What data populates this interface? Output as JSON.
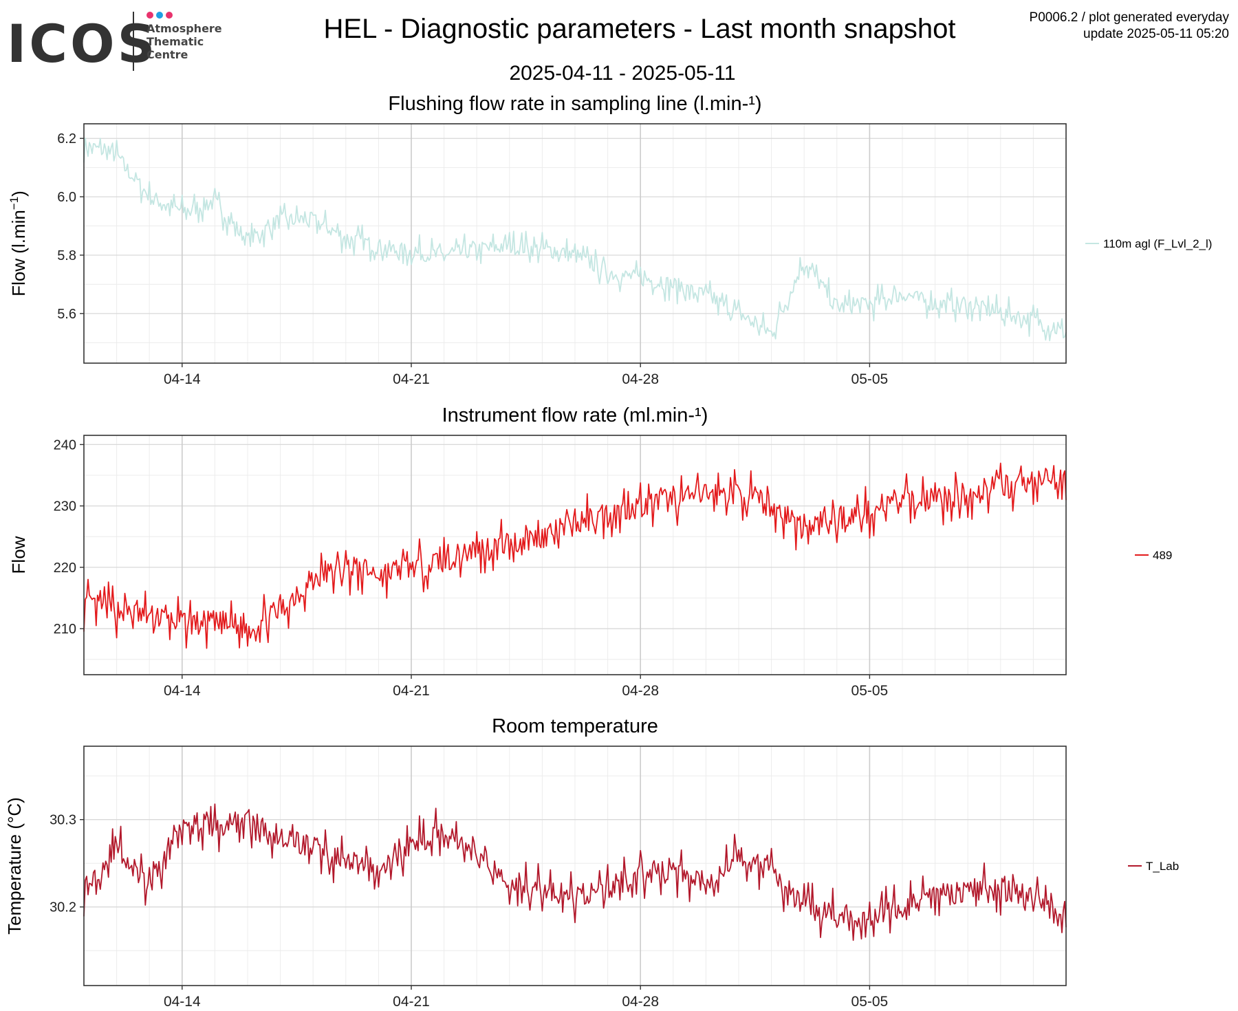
{
  "header": {
    "logo_text": "ICOS",
    "logo_sub": "Atmosphere\nThematic\nCentre",
    "title": "HEL - Diagnostic parameters - Last month snapshot",
    "date_range": "2025-04-11 - 2025-05-11",
    "meta_line1": "P0006.2 / plot generated everyday",
    "meta_line2": "update  2025-05-11 05:20",
    "logo_dot_colors": [
      "#e8336d",
      "#1fa0e3",
      "#e8336d"
    ]
  },
  "chart_data": [
    {
      "type": "line",
      "title": "Flushing flow rate in sampling line (l.min-¹)",
      "ylabel": "Flow (l.min",
      "ylabel_sup": "−1",
      "ylabel_end": ")",
      "xlim": [
        "2025-04-11",
        "2025-05-11"
      ],
      "ylim": [
        5.43,
        6.25
      ],
      "yticks": [
        5.6,
        5.8,
        6.0,
        6.2
      ],
      "ytick_labels": [
        "5.6",
        "5.8",
        "6.0",
        "6.2"
      ],
      "xticks": [
        "2025-04-14",
        "2025-04-21",
        "2025-04-28",
        "2025-05-05"
      ],
      "xtick_labels": [
        "04-14",
        "04-21",
        "04-28",
        "05-05"
      ],
      "grid": true,
      "legend_position": "right",
      "series": [
        {
          "name": "110m agl (F_Lvl_2_l)",
          "color": "#c4e6e2",
          "x": [
            "2025-04-11",
            "2025-04-12",
            "2025-04-13",
            "2025-04-14",
            "2025-04-15",
            "2025-04-16",
            "2025-04-17",
            "2025-04-18",
            "2025-04-19",
            "2025-04-20",
            "2025-04-21",
            "2025-04-22",
            "2025-04-23",
            "2025-04-24",
            "2025-04-25",
            "2025-04-26",
            "2025-04-27",
            "2025-04-28",
            "2025-04-29",
            "2025-04-30",
            "2025-05-01",
            "2025-05-02",
            "2025-05-03",
            "2025-05-04",
            "2025-05-05",
            "2025-05-06",
            "2025-05-07",
            "2025-05-08",
            "2025-05-09",
            "2025-05-10",
            "2025-05-11"
          ],
          "values": [
            6.18,
            6.14,
            6.0,
            5.95,
            5.98,
            5.85,
            5.92,
            5.92,
            5.86,
            5.83,
            5.81,
            5.8,
            5.82,
            5.83,
            5.82,
            5.8,
            5.74,
            5.72,
            5.7,
            5.66,
            5.6,
            5.53,
            5.78,
            5.62,
            5.63,
            5.67,
            5.63,
            5.63,
            5.6,
            5.58,
            5.53
          ]
        }
      ]
    },
    {
      "type": "line",
      "title": "Instrument flow rate (ml.min-¹)",
      "ylabel": "Flow",
      "xlim": [
        "2025-04-11",
        "2025-05-11"
      ],
      "ylim": [
        202.5,
        241.5
      ],
      "yticks": [
        210,
        220,
        230,
        240
      ],
      "ytick_labels": [
        "210",
        "220",
        "230",
        "240"
      ],
      "xticks": [
        "2025-04-14",
        "2025-04-21",
        "2025-04-28",
        "2025-05-05"
      ],
      "xtick_labels": [
        "04-14",
        "04-21",
        "04-28",
        "05-05"
      ],
      "grid": true,
      "legend_position": "right",
      "series": [
        {
          "name": "489",
          "color": "#e31a1c",
          "x": [
            "2025-04-11",
            "2025-04-12",
            "2025-04-13",
            "2025-04-14",
            "2025-04-15",
            "2025-04-16",
            "2025-04-17",
            "2025-04-18",
            "2025-04-19",
            "2025-04-20",
            "2025-04-21",
            "2025-04-22",
            "2025-04-23",
            "2025-04-24",
            "2025-04-25",
            "2025-04-26",
            "2025-04-27",
            "2025-04-28",
            "2025-04-29",
            "2025-04-30",
            "2025-05-01",
            "2025-05-02",
            "2025-05-03",
            "2025-05-04",
            "2025-05-05",
            "2025-05-06",
            "2025-05-07",
            "2025-05-08",
            "2025-05-09",
            "2025-05-10",
            "2025-05-11"
          ],
          "values": [
            214,
            213,
            212,
            211,
            211,
            210,
            213,
            218,
            220,
            219,
            220,
            221,
            223,
            224,
            225,
            227,
            229,
            230,
            231,
            232,
            232,
            230,
            226,
            228,
            229,
            231,
            231,
            232,
            233,
            234,
            234
          ]
        }
      ]
    },
    {
      "type": "line",
      "title": "Room temperature",
      "ylabel": "Temperature (°C)",
      "xlim": [
        "2025-04-11",
        "2025-05-11"
      ],
      "ylim": [
        30.11,
        30.384
      ],
      "yticks": [
        30.2,
        30.3
      ],
      "ytick_labels": [
        "30.2",
        "30.3"
      ],
      "xticks": [
        "2025-04-14",
        "2025-04-21",
        "2025-04-28",
        "2025-05-05"
      ],
      "xtick_labels": [
        "04-14",
        "04-21",
        "04-28",
        "05-05"
      ],
      "grid": true,
      "legend_position": "right",
      "series": [
        {
          "name": "T_Lab",
          "color": "#b2182b",
          "x": [
            "2025-04-11",
            "2025-04-12",
            "2025-04-13",
            "2025-04-14",
            "2025-04-15",
            "2025-04-16",
            "2025-04-17",
            "2025-04-18",
            "2025-04-19",
            "2025-04-20",
            "2025-04-21",
            "2025-04-22",
            "2025-04-23",
            "2025-04-24",
            "2025-04-25",
            "2025-04-26",
            "2025-04-27",
            "2025-04-28",
            "2025-04-29",
            "2025-04-30",
            "2025-05-01",
            "2025-05-02",
            "2025-05-03",
            "2025-05-04",
            "2025-05-05",
            "2025-05-06",
            "2025-05-07",
            "2025-05-08",
            "2025-05-09",
            "2025-05-10",
            "2025-05-11"
          ],
          "values": [
            30.22,
            30.27,
            30.22,
            30.3,
            30.29,
            30.3,
            30.28,
            30.27,
            30.25,
            30.24,
            30.27,
            30.29,
            30.26,
            30.23,
            30.22,
            30.21,
            30.22,
            30.24,
            30.24,
            30.23,
            30.26,
            30.24,
            30.2,
            30.19,
            30.19,
            30.2,
            30.21,
            30.22,
            30.22,
            30.21,
            30.2
          ]
        }
      ]
    }
  ]
}
